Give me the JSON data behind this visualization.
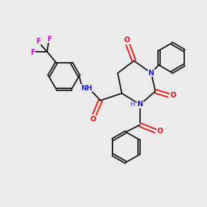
{
  "background_color": "#ebebeb",
  "bond_color": "#1a1a1a",
  "nitrogen_color": "#2020cc",
  "oxygen_color": "#ee1111",
  "fluorine_color": "#cc00cc",
  "figsize": [
    3.0,
    3.0
  ],
  "dpi": 100,
  "xlim": [
    0,
    10
  ],
  "ylim": [
    0,
    10
  ]
}
